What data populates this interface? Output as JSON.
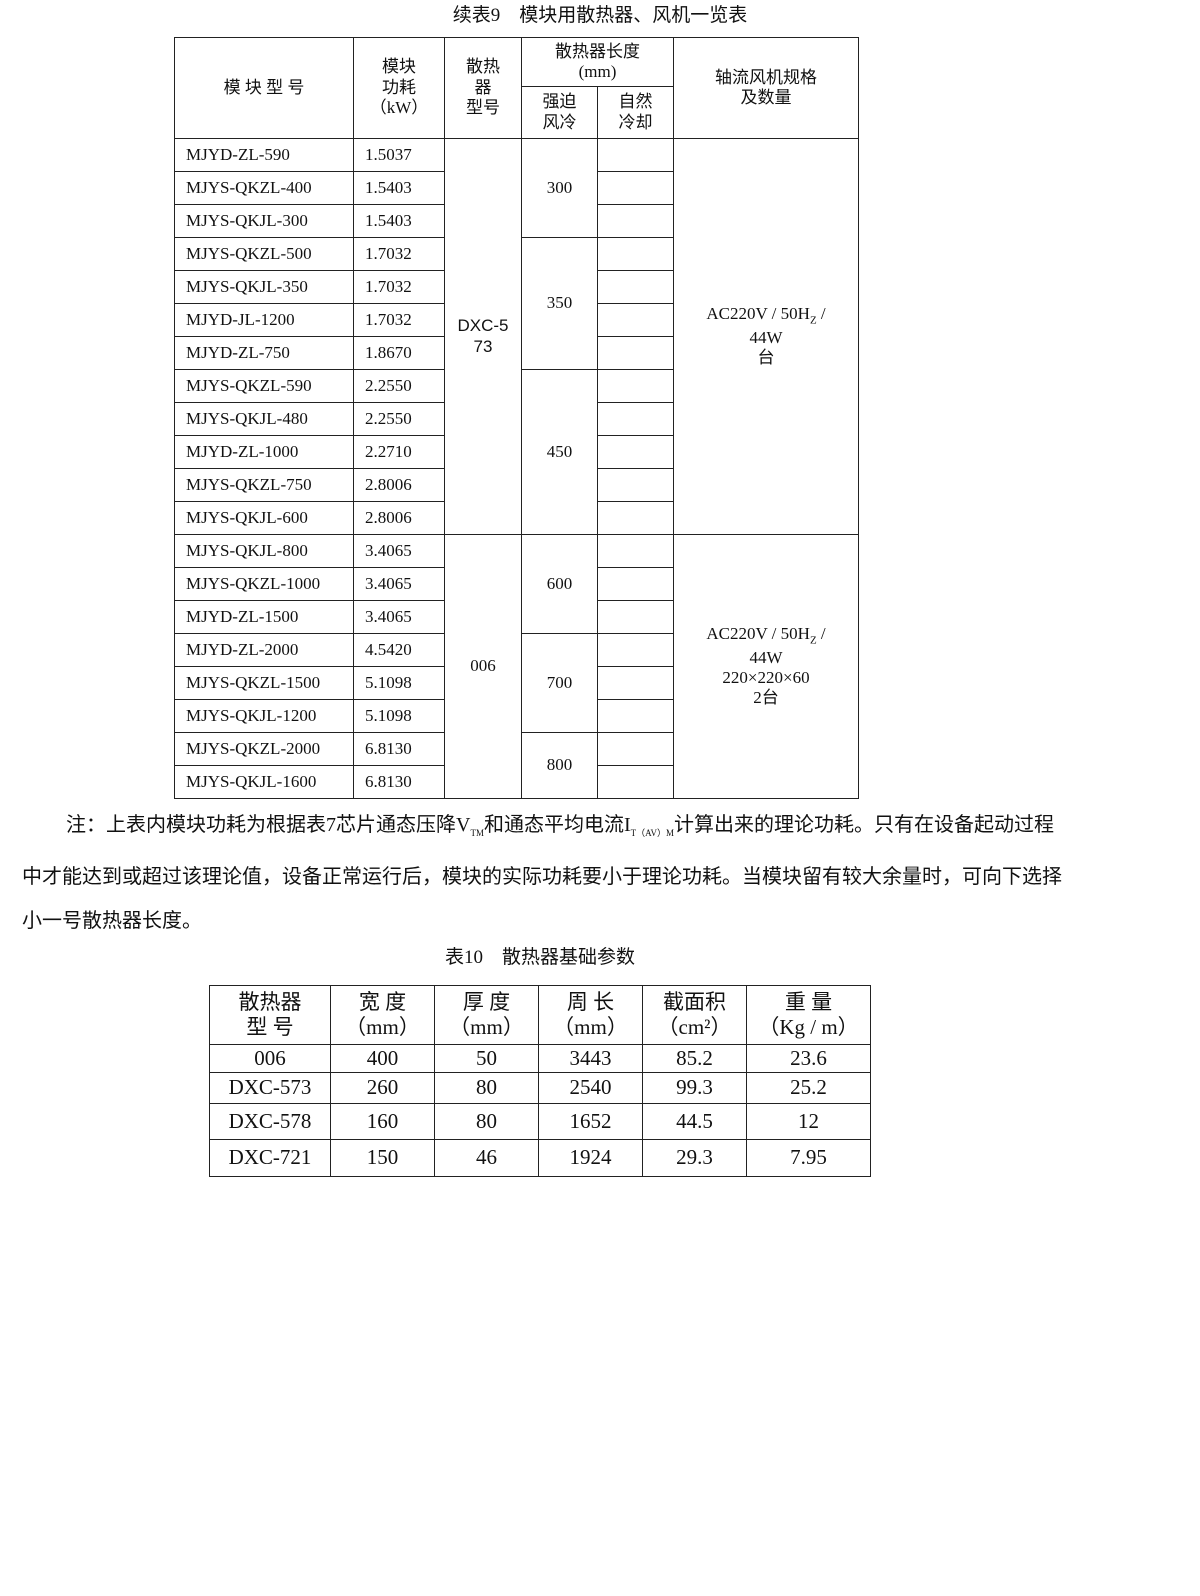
{
  "table9": {
    "caption": "续表9　模块用散热器、风机一览表",
    "headers": {
      "model": "模 块 型 号",
      "power": [
        "模块",
        "功耗",
        "（kW）"
      ],
      "heatsink": [
        "散热",
        "器",
        "型号"
      ],
      "length": [
        "散热器长度",
        "(mm)"
      ],
      "forced": [
        "强迫",
        "风冷"
      ],
      "natural": [
        "自然",
        "冷却"
      ],
      "fan": [
        "轴流风机规格",
        "及数量"
      ]
    },
    "rows": [
      [
        "MJYD-ZL-590",
        "1.5037"
      ],
      [
        "MJYS-QKZL-400",
        "1.5403"
      ],
      [
        "MJYS-QKJL-300",
        "1.5403"
      ],
      [
        "MJYS-QKZL-500",
        "1.7032"
      ],
      [
        "MJYS-QKJL-350",
        "1.7032"
      ],
      [
        "MJYD-JL-1200",
        "1.7032"
      ],
      [
        "MJYD-ZL-750",
        "1.8670"
      ],
      [
        "MJYS-QKZL-590",
        "2.2550"
      ],
      [
        "MJYS-QKJL-480",
        "2.2550"
      ],
      [
        "MJYD-ZL-1000",
        "2.2710"
      ],
      [
        "MJYS-QKZL-750",
        "2.8006"
      ],
      [
        "MJYS-QKJL-600",
        "2.8006"
      ],
      [
        "MJYS-QKJL-800",
        "3.4065"
      ],
      [
        "MJYS-QKZL-1000",
        "3.4065"
      ],
      [
        "MJYD-ZL-1500",
        "3.4065"
      ],
      [
        "MJYD-ZL-2000",
        "4.5420"
      ],
      [
        "MJYS-QKZL-1500",
        "5.1098"
      ],
      [
        "MJYS-QKJL-1200",
        "5.1098"
      ],
      [
        "MJYS-QKZL-2000",
        "6.8130"
      ],
      [
        "MJYS-QKJL-1600",
        "6.8130"
      ]
    ],
    "heatsink_groups": [
      {
        "label": [
          "DXC-5",
          "73"
        ],
        "span": 12
      },
      {
        "label": [
          "006"
        ],
        "span": 8
      }
    ],
    "forced_groups": [
      {
        "label": "300",
        "span": 3
      },
      {
        "label": "350",
        "span": 4
      },
      {
        "label": "450",
        "span": 5
      },
      {
        "label": "600",
        "span": 3
      },
      {
        "label": "700",
        "span": 3
      },
      {
        "label": "800",
        "span": 2
      }
    ],
    "fan_groups": [
      {
        "lines": [
          "AC220V / 50H|Z| /",
          "44W",
          "台"
        ],
        "span": 12
      },
      {
        "lines": [
          "AC220V / 50H|Z| /",
          "44W",
          "220×220×60",
          "2台"
        ],
        "span": 8
      }
    ]
  },
  "note": {
    "p1": "注：上表内模块功耗为根据表7芯片通态压降V",
    "sub1": "TM",
    "p2": "和通态平均电流I",
    "sub2": "T（AV）M",
    "p3": "计算出来的理论功耗。只有在设备起动过程中才能达到或超过该理论值，设备正常运行后，模块的实际功耗要小于理论功耗。当模块留有较大余量时，可向下选择小一号散热器长度。"
  },
  "table10": {
    "caption": "表10　散热器基础参数",
    "headers": [
      [
        "散热器",
        "型 号"
      ],
      [
        "宽 度",
        "（mm）"
      ],
      [
        "厚 度",
        "（mm）"
      ],
      [
        "周 长",
        "（mm）"
      ],
      [
        "截面积",
        "（cm²）"
      ],
      [
        "重 量",
        "（Kg / m）"
      ]
    ],
    "rows": [
      [
        "006",
        "400",
        "50",
        "3443",
        "85.2",
        "23.6"
      ],
      [
        "DXC-573",
        "260",
        "80",
        "2540",
        "99.3",
        "25.2"
      ],
      [
        "DXC-578",
        "160",
        "80",
        "1652",
        "44.5",
        "12"
      ],
      [
        "DXC-721",
        "150",
        "46",
        "1924",
        "29.3",
        "7.95"
      ]
    ]
  }
}
